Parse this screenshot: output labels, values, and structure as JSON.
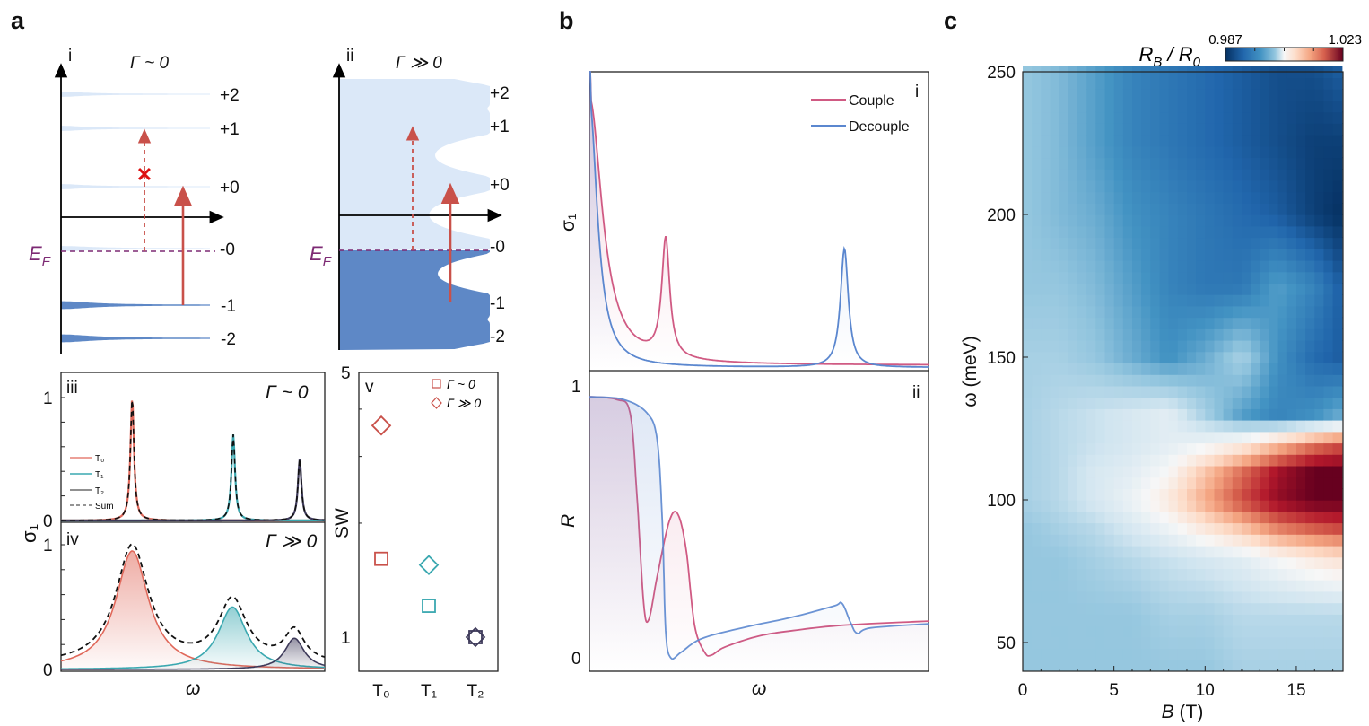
{
  "panel_letters": {
    "a": "a",
    "b": "b",
    "c": "c"
  },
  "colors": {
    "empty_band": "#dbe8f8",
    "filled_band": "#5e88c6",
    "arrow": "#c9514a",
    "fermi": "#7d2a74",
    "T0": "#e0685a",
    "T1": "#3aa8b0",
    "T2": "#3e3a5a",
    "couple": "#d05a83",
    "decouple": "#5b87cf"
  },
  "chart_data": [
    {
      "type": "diagram",
      "id": "a-i",
      "label": "i",
      "title": "Γ ~ 0",
      "fermi_label": "E",
      "fermi_sub": "F",
      "levels": [
        "+2",
        "+1",
        "+0",
        "-0",
        "-1",
        "-2"
      ],
      "forbidden_mark": "✕"
    },
    {
      "type": "diagram",
      "id": "a-ii",
      "label": "ii",
      "title": "Γ ≫ 0",
      "fermi_label": "E",
      "fermi_sub": "F",
      "levels": [
        "+2",
        "+1",
        "+0",
        "-0",
        "-1",
        "-2"
      ]
    },
    {
      "type": "line",
      "id": "a-iii",
      "label": "iii",
      "title": "Γ ~ 0",
      "ylabel": "σ₁",
      "yticks": [
        "1",
        "0"
      ],
      "ylim": [
        0,
        1
      ],
      "legend": [
        "T₀",
        "T₁",
        "T₂",
        "Sum"
      ],
      "series": [
        {
          "name": "T₀",
          "center": 0.27,
          "amplitude": 1.0,
          "width": 0.008
        },
        {
          "name": "T₁",
          "center": 0.653,
          "amplitude": 0.7,
          "width": 0.008
        },
        {
          "name": "T₂",
          "center": 0.905,
          "amplitude": 0.5,
          "width": 0.008
        }
      ]
    },
    {
      "type": "area",
      "id": "a-iv",
      "label": "iv",
      "title": "Γ ≫ 0",
      "xlabel": "ω",
      "yticks": [
        "1",
        "0"
      ],
      "ylim": [
        0,
        1
      ],
      "series": [
        {
          "name": "T₀",
          "center": 0.27,
          "amplitude": 0.95,
          "width": 0.075
        },
        {
          "name": "T₁",
          "center": 0.65,
          "amplitude": 0.5,
          "width": 0.065
        },
        {
          "name": "T₂",
          "center": 0.885,
          "amplitude": 0.25,
          "width": 0.045
        }
      ]
    },
    {
      "type": "scatter",
      "id": "a-v",
      "label": "v",
      "ylabel": "SW",
      "yscale": "log",
      "ylim": [
        1,
        5
      ],
      "yticks": [
        "5",
        "1"
      ],
      "categories": [
        "T₀",
        "T₁",
        "T₂"
      ],
      "series": [
        {
          "name": "Γ ~ 0",
          "marker": "square",
          "values": [
            1.61,
            1.21,
            1.0
          ]
        },
        {
          "name": "Γ ≫ 0",
          "marker": "diamond",
          "values": [
            3.62,
            1.55,
            1.0
          ]
        }
      ]
    },
    {
      "type": "line",
      "id": "b-i",
      "label": "i",
      "ylabel": "σ₁",
      "legend": [
        "Couple",
        "Decouple"
      ],
      "series": [
        {
          "name": "Couple",
          "drude_width": 0.045,
          "peak_center": 0.225,
          "peak_height": 0.4,
          "peak_width": 0.014
        },
        {
          "name": "Decouple",
          "drude_width": 0.028,
          "peak_center": 0.752,
          "peak_height": 0.4,
          "peak_width": 0.014
        }
      ]
    },
    {
      "type": "line",
      "id": "b-ii",
      "label": "ii",
      "xlabel": "ω",
      "ylabel": "R",
      "yticks": [
        "1",
        "0"
      ],
      "ylim": [
        0,
        1
      ],
      "series": [
        {
          "name": "Couple",
          "points": [
            [
              0,
              0.96
            ],
            [
              0.08,
              0.95
            ],
            [
              0.12,
              0.9
            ],
            [
              0.14,
              0.6
            ],
            [
              0.16,
              0.2
            ],
            [
              0.175,
              0.14
            ],
            [
              0.2,
              0.3
            ],
            [
              0.235,
              0.5
            ],
            [
              0.26,
              0.53
            ],
            [
              0.285,
              0.4
            ],
            [
              0.31,
              0.12
            ],
            [
              0.34,
              0.02
            ],
            [
              0.36,
              0.01
            ],
            [
              0.4,
              0.04
            ],
            [
              0.5,
              0.08
            ],
            [
              0.6,
              0.1
            ],
            [
              0.75,
              0.12
            ],
            [
              1,
              0.135
            ]
          ]
        },
        {
          "name": "Decouple",
          "points": [
            [
              0,
              0.96
            ],
            [
              0.1,
              0.95
            ],
            [
              0.17,
              0.9
            ],
            [
              0.2,
              0.8
            ],
            [
              0.215,
              0.5
            ],
            [
              0.225,
              0.1
            ],
            [
              0.24,
              0.0
            ],
            [
              0.27,
              0.02
            ],
            [
              0.33,
              0.07
            ],
            [
              0.45,
              0.11
            ],
            [
              0.6,
              0.15
            ],
            [
              0.72,
              0.19
            ],
            [
              0.745,
              0.2
            ],
            [
              0.77,
              0.13
            ],
            [
              0.79,
              0.09
            ],
            [
              0.83,
              0.11
            ],
            [
              1,
              0.125
            ]
          ]
        }
      ]
    },
    {
      "type": "heatmap",
      "id": "c",
      "xlabel": "B (T)",
      "ylabel": "ω (meV)",
      "xlim": [
        0,
        17.5
      ],
      "ylim": [
        40,
        250
      ],
      "xticks": [
        "0",
        "5",
        "10",
        "15"
      ],
      "yticks": [
        "50",
        "100",
        "150",
        "200",
        "250"
      ],
      "colorbar": {
        "label_parts": [
          "R",
          "B",
          " / R",
          "0"
        ],
        "min": "0.987",
        "max": "1.023",
        "colormap": "RdBu_r"
      },
      "B": [
        0,
        2,
        4,
        6,
        8,
        10,
        12,
        14,
        16,
        17.5
      ],
      "omega": [
        40,
        60,
        80,
        90,
        100,
        110,
        120,
        130,
        150,
        175,
        200,
        225,
        250
      ],
      "values": [
        [
          0.998,
          0.998,
          0.998,
          0.998,
          0.998,
          0.998,
          0.999,
          0.999,
          0.999,
          0.999
        ],
        [
          0.998,
          0.998,
          0.998,
          0.998,
          0.999,
          0.999,
          1.0,
          1.0,
          1.0,
          1.0
        ],
        [
          0.998,
          0.998,
          0.999,
          1.0,
          1.001,
          1.002,
          1.003,
          1.005,
          1.007,
          1.008
        ],
        [
          0.998,
          0.999,
          1.0,
          1.002,
          1.004,
          1.007,
          1.01,
          1.014,
          1.016,
          1.017
        ],
        [
          0.999,
          1.0,
          1.002,
          1.004,
          1.007,
          1.012,
          1.017,
          1.021,
          1.023,
          1.023
        ],
        [
          0.999,
          1.0,
          1.002,
          1.003,
          1.005,
          1.01,
          1.015,
          1.02,
          1.023,
          1.023
        ],
        [
          0.999,
          1.0,
          1.001,
          1.002,
          1.003,
          1.004,
          1.006,
          1.01,
          1.014,
          1.016
        ],
        [
          0.999,
          1.0,
          1.001,
          1.002,
          1.003,
          0.999,
          0.995,
          0.993,
          0.994,
          0.996
        ],
        [
          0.999,
          0.999,
          0.998,
          0.996,
          0.994,
          0.996,
          0.999,
          0.994,
          0.991,
          0.99
        ],
        [
          0.998,
          0.998,
          0.997,
          0.995,
          0.993,
          0.992,
          0.992,
          0.995,
          0.993,
          0.99
        ],
        [
          0.998,
          0.997,
          0.996,
          0.994,
          0.993,
          0.992,
          0.991,
          0.99,
          0.988,
          0.987
        ],
        [
          0.998,
          0.997,
          0.995,
          0.993,
          0.992,
          0.991,
          0.99,
          0.989,
          0.988,
          0.988
        ],
        [
          0.998,
          0.997,
          0.995,
          0.993,
          0.992,
          0.991,
          0.99,
          0.989,
          0.989,
          0.99
        ]
      ]
    }
  ]
}
